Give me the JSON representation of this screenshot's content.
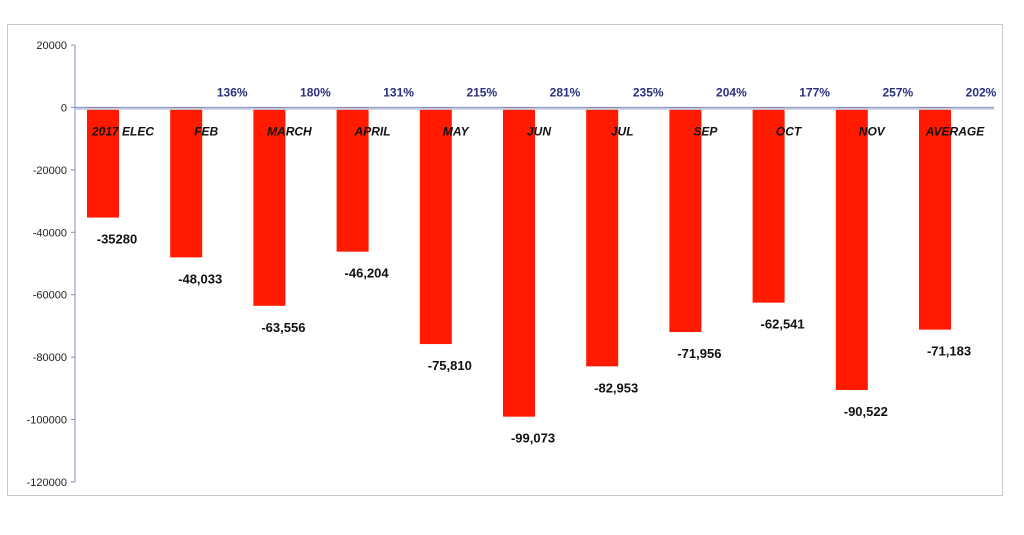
{
  "chart_data": {
    "type": "bar",
    "categories": [
      "2017 ELEC",
      "FEB",
      "MARCH",
      "APRIL",
      "MAY",
      "JUN",
      "JUL",
      "SEP",
      "OCT",
      "NOV",
      "AVERAGE"
    ],
    "values": [
      -35280,
      -48033,
      -63556,
      -46204,
      -75810,
      -99073,
      -82953,
      -71956,
      -62541,
      -90522,
      -71183
    ],
    "value_labels": [
      "-35280",
      "-48,033",
      "-63,556",
      "-46,204",
      "-75,810",
      "-99,073",
      "-82,953",
      "-71,956",
      "-62,541",
      "-90,522",
      "-71,183"
    ],
    "percent_labels": [
      "",
      "136%",
      "180%",
      "131%",
      "215%",
      "281%",
      "235%",
      "204%",
      "177%",
      "257%",
      "202%"
    ],
    "ylim": [
      -120000,
      20000
    ],
    "yticks": [
      20000,
      0,
      -20000,
      -40000,
      -60000,
      -80000,
      -100000,
      -120000
    ],
    "ytick_labels": [
      "20000",
      "0",
      "-20000",
      "-40000",
      "-60000",
      "-80000",
      "-100000",
      "-120000"
    ],
    "title": "",
    "xlabel": "",
    "ylabel": "",
    "grid": false,
    "legend": "none",
    "bar_color": "#ff1a00",
    "percent_color": "#2b2f7e",
    "axis_color": "#7f8fbf"
  }
}
